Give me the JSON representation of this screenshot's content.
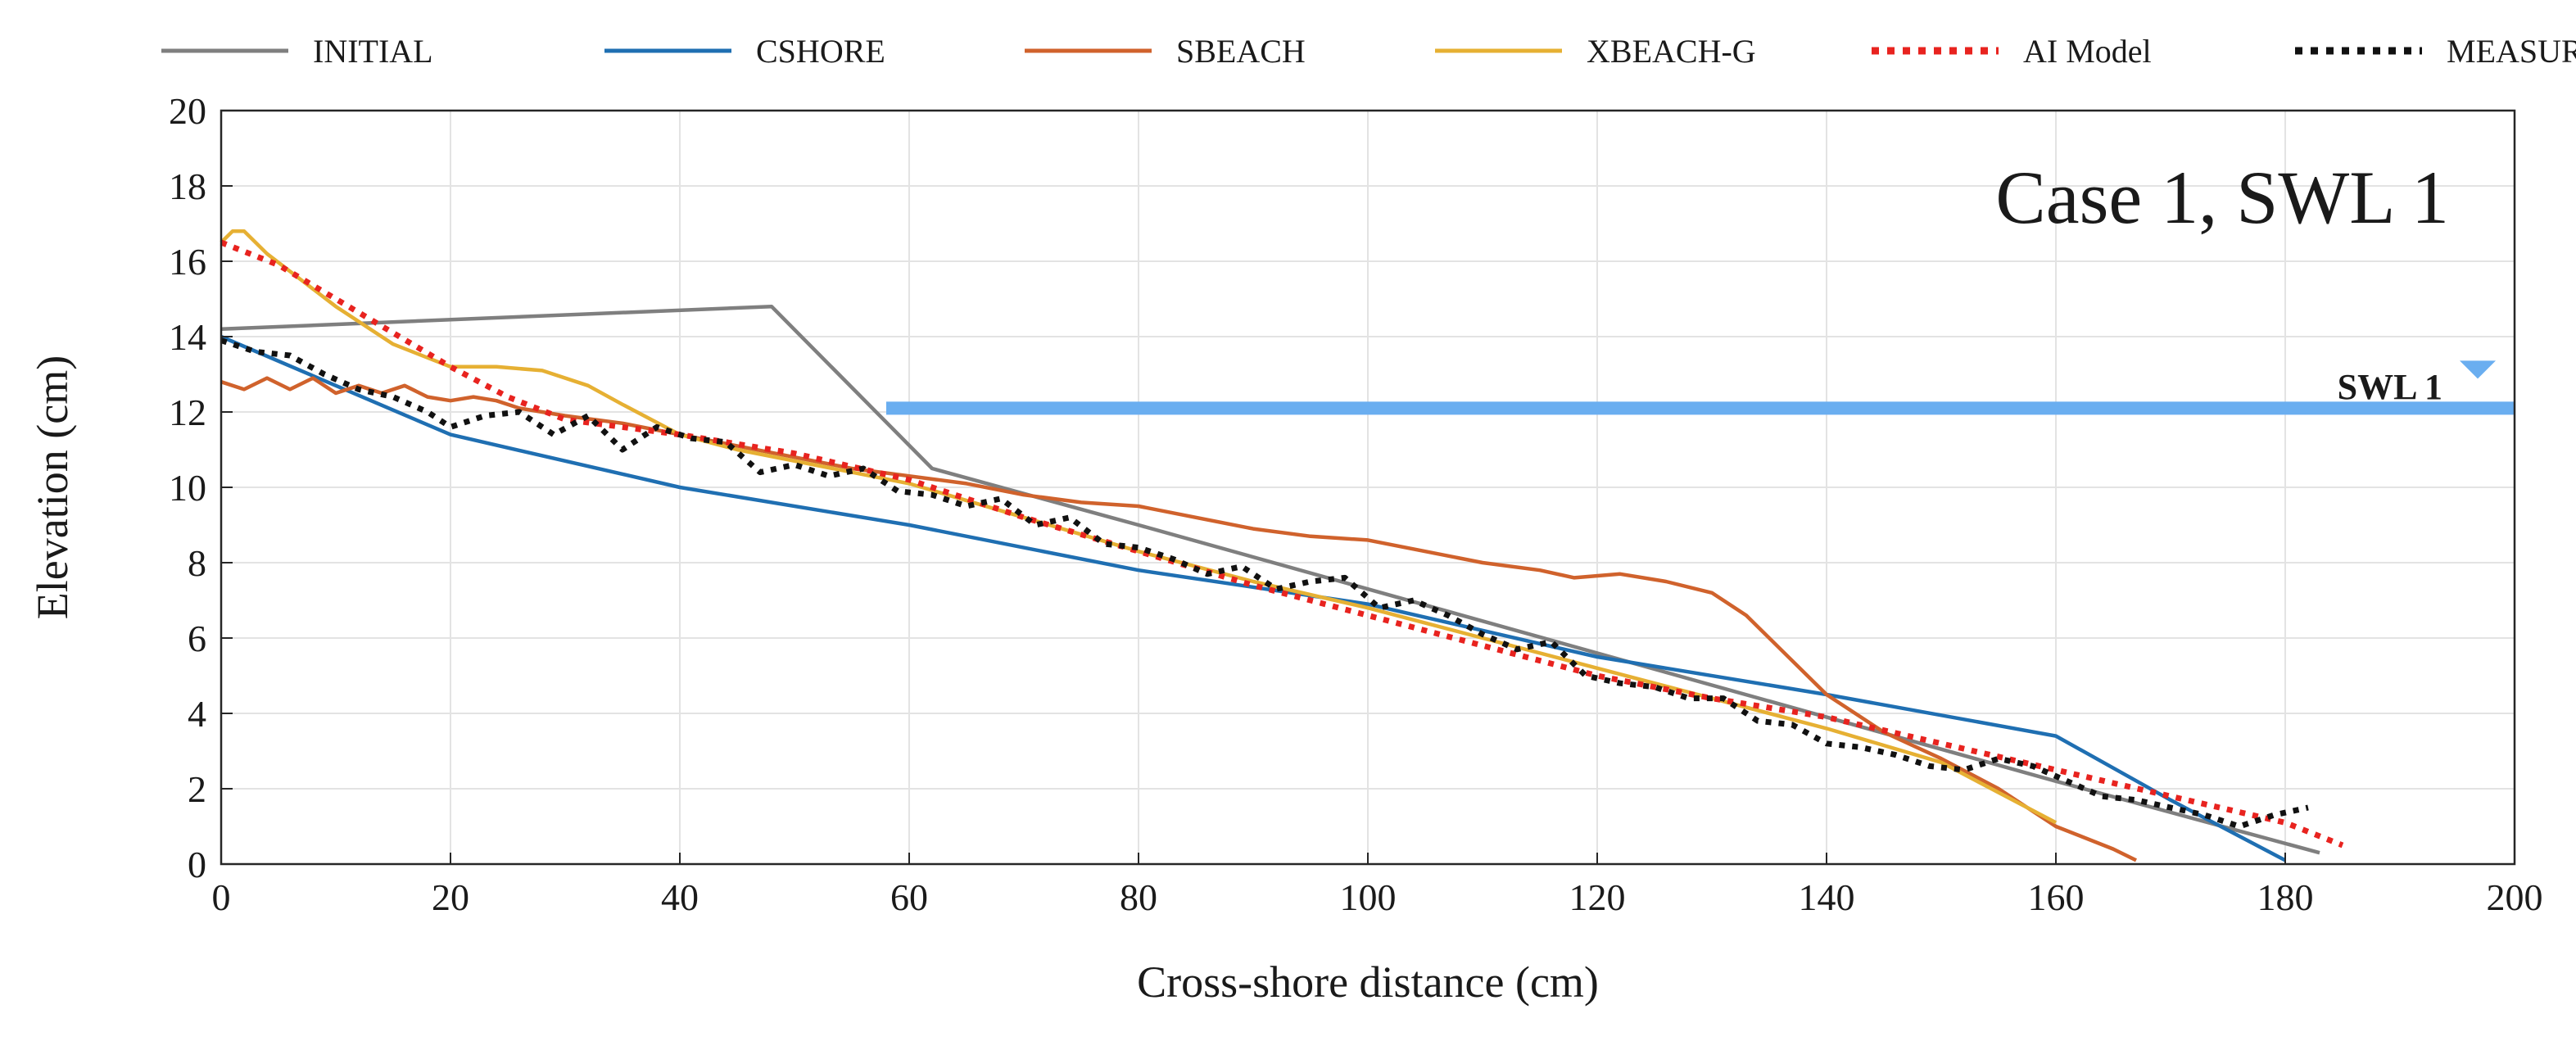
{
  "chart_data": {
    "type": "line",
    "title": "Case 1, SWL 1",
    "xlabel": "Cross-shore distance (cm)",
    "ylabel": "Elevation (cm)",
    "xlim": [
      0,
      200
    ],
    "ylim": [
      0,
      20
    ],
    "x_ticks": [
      0,
      20,
      40,
      60,
      80,
      100,
      120,
      140,
      160,
      180,
      200
    ],
    "y_ticks": [
      0,
      2,
      4,
      6,
      8,
      10,
      12,
      14,
      16,
      18,
      20
    ],
    "grid": true,
    "legend_position": "top",
    "swl": {
      "label": "SWL 1",
      "y": 12.1,
      "x_start": 58,
      "x_end": 200,
      "color": "#6aaef0"
    },
    "series": [
      {
        "name": "INITIAL",
        "color": "#7f7f7f",
        "style": "solid",
        "x": [
          0,
          48,
          62,
          80,
          100,
          120,
          140,
          160,
          183
        ],
        "y": [
          14.2,
          14.8,
          10.5,
          9.0,
          7.3,
          5.6,
          3.9,
          2.2,
          0.3
        ]
      },
      {
        "name": "CSHORE",
        "color": "#1f6fb2",
        "style": "solid",
        "x": [
          0,
          10,
          20,
          40,
          60,
          80,
          100,
          120,
          140,
          160,
          170,
          180
        ],
        "y": [
          14.0,
          12.7,
          11.4,
          10.0,
          9.0,
          7.8,
          6.9,
          5.5,
          4.5,
          3.4,
          1.7,
          0.1
        ]
      },
      {
        "name": "SBEACH",
        "color": "#d0622c",
        "style": "solid",
        "x": [
          0,
          2,
          4,
          6,
          8,
          10,
          12,
          14,
          16,
          18,
          20,
          22,
          24,
          26,
          28,
          30,
          35,
          40,
          45,
          50,
          55,
          60,
          65,
          70,
          75,
          80,
          85,
          90,
          95,
          100,
          105,
          110,
          115,
          118,
          122,
          126,
          130,
          133,
          136,
          140,
          145,
          150,
          155,
          160,
          165,
          167
        ],
        "y": [
          12.8,
          12.6,
          12.9,
          12.6,
          12.9,
          12.5,
          12.7,
          12.5,
          12.7,
          12.4,
          12.3,
          12.4,
          12.3,
          12.1,
          12.0,
          11.9,
          11.7,
          11.4,
          11.1,
          10.8,
          10.5,
          10.3,
          10.1,
          9.8,
          9.6,
          9.5,
          9.2,
          8.9,
          8.7,
          8.6,
          8.3,
          8.0,
          7.8,
          7.6,
          7.7,
          7.5,
          7.2,
          6.6,
          5.7,
          4.5,
          3.5,
          2.8,
          2.0,
          1.0,
          0.4,
          0.1
        ]
      },
      {
        "name": "XBEACH-G",
        "color": "#e6b033",
        "style": "solid",
        "x": [
          0,
          1,
          2,
          4,
          7,
          10,
          15,
          20,
          24,
          28,
          32,
          35,
          40,
          45,
          50,
          55,
          60,
          70,
          80,
          90,
          100,
          110,
          120,
          130,
          140,
          150,
          155,
          160
        ],
        "y": [
          16.5,
          16.8,
          16.8,
          16.2,
          15.5,
          14.8,
          13.8,
          13.2,
          13.2,
          13.1,
          12.7,
          12.2,
          11.4,
          11.0,
          10.7,
          10.4,
          10.1,
          9.2,
          8.3,
          7.5,
          6.8,
          6.0,
          5.2,
          4.4,
          3.6,
          2.7,
          1.9,
          1.1
        ]
      },
      {
        "name": "AI Model",
        "color": "#e8231f",
        "style": "dotted",
        "x": [
          0,
          5,
          10,
          15,
          20,
          25,
          30,
          40,
          50,
          60,
          70,
          80,
          90,
          100,
          110,
          120,
          130,
          140,
          150,
          160,
          170,
          180,
          185
        ],
        "y": [
          16.5,
          15.9,
          15.0,
          14.1,
          13.2,
          12.4,
          11.8,
          11.4,
          10.9,
          10.2,
          9.2,
          8.3,
          7.4,
          6.6,
          5.8,
          5.0,
          4.4,
          3.9,
          3.2,
          2.5,
          1.8,
          1.1,
          0.5
        ]
      },
      {
        "name": "MEASURED",
        "color": "#111111",
        "style": "dotted",
        "x": [
          0,
          3,
          6,
          9,
          12,
          15,
          18,
          20,
          23,
          26,
          29,
          32,
          35,
          38,
          41,
          44,
          47,
          50,
          53,
          56,
          59,
          62,
          65,
          68,
          71,
          74,
          77,
          80,
          83,
          86,
          89,
          92,
          95,
          98,
          101,
          104,
          107,
          110,
          113,
          116,
          119,
          122,
          125,
          128,
          131,
          134,
          137,
          140,
          143,
          146,
          149,
          152,
          155,
          158,
          161,
          164,
          167,
          170,
          173,
          176,
          179,
          182
        ],
        "y": [
          13.9,
          13.6,
          13.5,
          13.0,
          12.6,
          12.4,
          12.0,
          11.6,
          11.9,
          12.0,
          11.4,
          11.9,
          11.0,
          11.6,
          11.3,
          11.2,
          10.4,
          10.6,
          10.3,
          10.5,
          9.9,
          9.8,
          9.5,
          9.7,
          9.0,
          9.2,
          8.5,
          8.4,
          8.1,
          7.7,
          7.9,
          7.3,
          7.5,
          7.6,
          6.8,
          7.0,
          6.6,
          6.1,
          5.7,
          5.9,
          5.0,
          4.8,
          4.7,
          4.4,
          4.4,
          3.8,
          3.7,
          3.2,
          3.1,
          2.9,
          2.6,
          2.5,
          2.8,
          2.6,
          2.2,
          1.8,
          1.7,
          1.5,
          1.3,
          1.0,
          1.3,
          1.5
        ]
      }
    ]
  }
}
